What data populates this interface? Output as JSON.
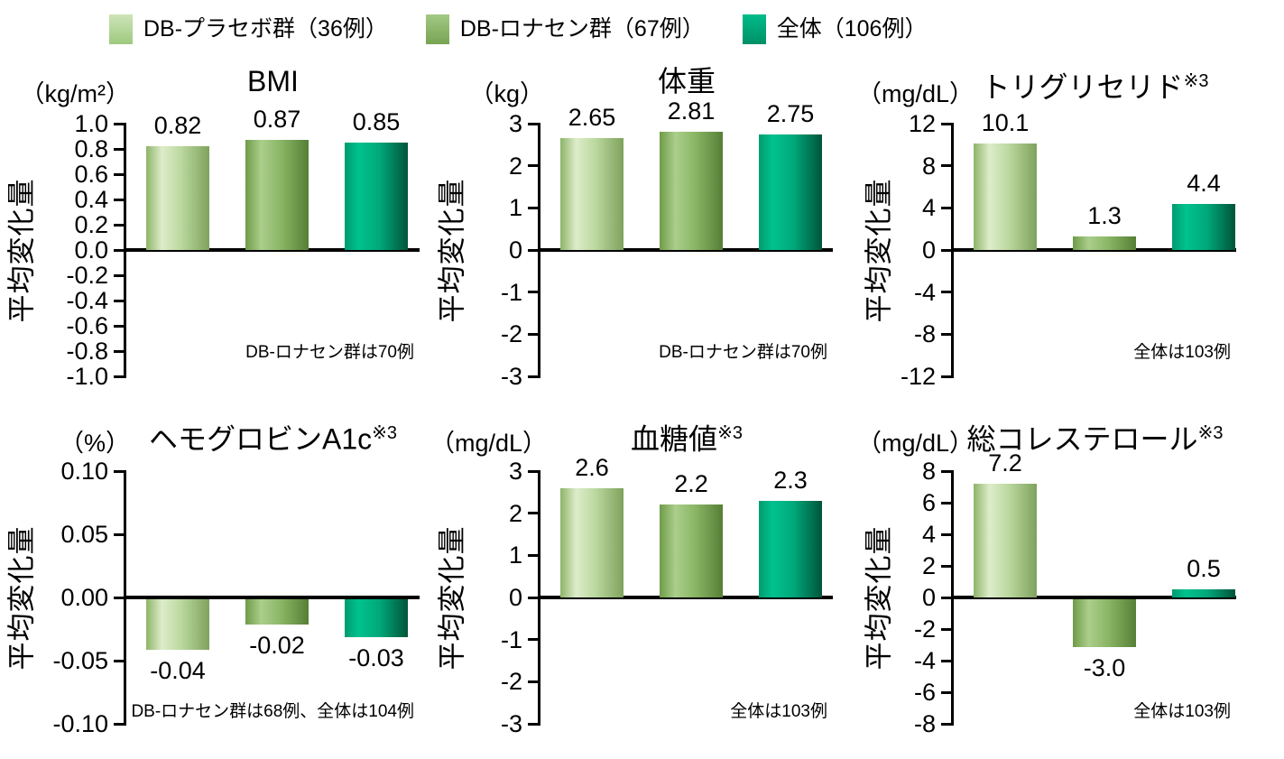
{
  "legend": {
    "items": [
      {
        "name": "placebo",
        "label": "DB-プラセボ群（36例）",
        "color": "#b7d79a"
      },
      {
        "name": "lonasen",
        "label": "DB-ロナセン群（67例）",
        "color": "#8cb766"
      },
      {
        "name": "overall",
        "label": "全体（106例）",
        "color": "#00a87a"
      }
    ]
  },
  "y_axis_label": "平均変化量",
  "series_names": [
    "DB-プラセボ群",
    "DB-ロナセン群",
    "全体"
  ],
  "chart_data": [
    {
      "type": "bar",
      "title": "BMI",
      "title_note": "",
      "unit": "（kg/m²）",
      "ylabel": "平均変化量",
      "ylim": [
        -1.0,
        1.0
      ],
      "yticks": [
        "1.0",
        "0.8",
        "0.6",
        "0.4",
        "0.2",
        "0.0",
        "-0.2",
        "-0.4",
        "-0.6",
        "-0.8",
        "-1.0"
      ],
      "categories": [
        "DB-プラセボ群",
        "DB-ロナセン群",
        "全体"
      ],
      "values": [
        0.82,
        0.87,
        0.85
      ],
      "value_labels": [
        "0.82",
        "0.87",
        "0.85"
      ],
      "footnote": "DB-ロナセン群は70例"
    },
    {
      "type": "bar",
      "title": "体重",
      "title_note": "",
      "unit": "（kg）",
      "ylabel": "平均変化量",
      "ylim": [
        -3,
        3
      ],
      "yticks": [
        "3",
        "2",
        "1",
        "0",
        "-1",
        "-2",
        "-3"
      ],
      "categories": [
        "DB-プラセボ群",
        "DB-ロナセン群",
        "全体"
      ],
      "values": [
        2.65,
        2.81,
        2.75
      ],
      "value_labels": [
        "2.65",
        "2.81",
        "2.75"
      ],
      "footnote": "DB-ロナセン群は70例"
    },
    {
      "type": "bar",
      "title": "トリグリセリド",
      "title_note": "※3",
      "unit": "（mg/dL）",
      "ylabel": "平均変化量",
      "ylim": [
        -12,
        12
      ],
      "yticks": [
        "12",
        "8",
        "4",
        "0",
        "-4",
        "-8",
        "-12"
      ],
      "categories": [
        "DB-プラセボ群",
        "DB-ロナセン群",
        "全体"
      ],
      "values": [
        10.1,
        1.3,
        4.4
      ],
      "value_labels": [
        "10.1",
        "1.3",
        "4.4"
      ],
      "footnote": "全体は103例"
    },
    {
      "type": "bar",
      "title": "ヘモグロビンA1c",
      "title_note": "※3",
      "unit": "（%）",
      "ylabel": "平均変化量",
      "ylim": [
        -0.1,
        0.1
      ],
      "yticks": [
        "0.10",
        "0.05",
        "0.00",
        "-0.05",
        "-0.10"
      ],
      "categories": [
        "DB-プラセボ群",
        "DB-ロナセン群",
        "全体"
      ],
      "values": [
        -0.04,
        -0.02,
        -0.03
      ],
      "value_labels": [
        "-0.04",
        "-0.02",
        "-0.03"
      ],
      "footnote": "DB-ロナセン群は68例、全体は104例"
    },
    {
      "type": "bar",
      "title": "血糖値",
      "title_note": "※3",
      "unit": "（mg/dL）",
      "ylabel": "平均変化量",
      "ylim": [
        -3,
        3
      ],
      "yticks": [
        "3",
        "2",
        "1",
        "0",
        "-1",
        "-2",
        "-3"
      ],
      "categories": [
        "DB-プラセボ群",
        "DB-ロナセン群",
        "全体"
      ],
      "values": [
        2.6,
        2.2,
        2.3
      ],
      "value_labels": [
        "2.6",
        "2.2",
        "2.3"
      ],
      "footnote": "全体は103例"
    },
    {
      "type": "bar",
      "title": "総コレステロール",
      "title_note": "※3",
      "unit": "（mg/dL）",
      "ylabel": "平均変化量",
      "ylim": [
        -8,
        8
      ],
      "yticks": [
        "8",
        "6",
        "4",
        "2",
        "0",
        "-2",
        "-4",
        "-6",
        "-8"
      ],
      "categories": [
        "DB-プラセボ群",
        "DB-ロナセン群",
        "全体"
      ],
      "values": [
        7.2,
        -3.0,
        0.5
      ],
      "value_labels": [
        "7.2",
        "-3.0",
        "0.5"
      ],
      "footnote": "全体は103例"
    }
  ]
}
